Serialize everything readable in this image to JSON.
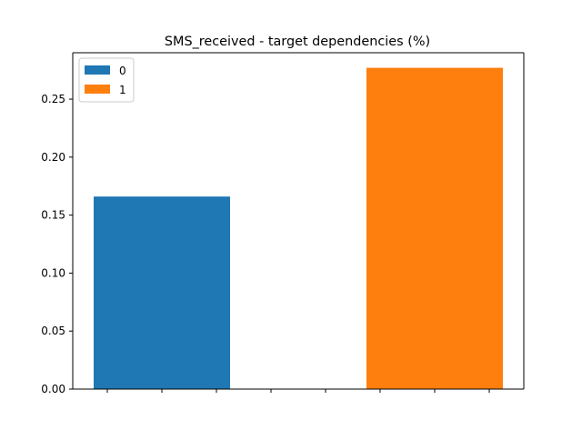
{
  "chart_data": {
    "type": "bar",
    "title": "SMS_received - target dependencies (%)",
    "xlabel": "",
    "ylabel": "",
    "ylim": [
      0,
      0.29
    ],
    "yticks": [
      0.0,
      0.05,
      0.1,
      0.15,
      0.2,
      0.25
    ],
    "ytick_labels": [
      "0.00",
      "0.05",
      "0.10",
      "0.15",
      "0.20",
      "0.25"
    ],
    "xticks_count": 8,
    "x_tick_labels_shown": false,
    "grid": false,
    "legend_position": "top-left",
    "series": [
      {
        "name": "0",
        "value": 0.166,
        "color": "#1f77b4",
        "slot": 0
      },
      {
        "name": "1",
        "value": 0.277,
        "color": "#ff7f0e",
        "slot": 2
      }
    ]
  }
}
